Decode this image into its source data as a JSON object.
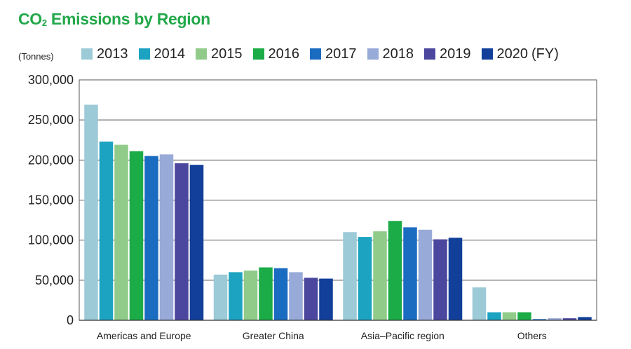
{
  "title_main": "CO",
  "title_sub": "2",
  "title_rest": " Emissions by Region",
  "unit_label": "(Tonnes)",
  "legend_suffix": "(FY)",
  "chart_data": {
    "type": "bar",
    "title": "CO₂ Emissions by Region",
    "ylabel": "(Tonnes)",
    "ylim": [
      0,
      300000
    ],
    "yticks": [
      "0",
      "50,000",
      "100,000",
      "150,000",
      "200,000",
      "250,000",
      "300,000"
    ],
    "ytick_values": [
      0,
      50000,
      100000,
      150000,
      200000,
      250000,
      300000
    ],
    "grid": true,
    "legend_position": "top",
    "categories": [
      "Americas and Europe",
      "Greater China",
      "Asia–Pacific region",
      "Others"
    ],
    "series": [
      {
        "name": "2013",
        "color": "#9ccad6",
        "values": [
          269000,
          57000,
          110000,
          41000
        ]
      },
      {
        "name": "2014",
        "color": "#1ba3c1",
        "values": [
          223000,
          60000,
          104000,
          10000
        ]
      },
      {
        "name": "2015",
        "color": "#90cb8a",
        "values": [
          219000,
          62000,
          111000,
          10000
        ]
      },
      {
        "name": "2016",
        "color": "#1bab47",
        "values": [
          211000,
          66000,
          124000,
          10000
        ]
      },
      {
        "name": "2017",
        "color": "#1a6cc0",
        "values": [
          205000,
          65000,
          116000,
          1500
        ]
      },
      {
        "name": "2018",
        "color": "#98aad8",
        "values": [
          207000,
          60000,
          113000,
          2500
        ]
      },
      {
        "name": "2019",
        "color": "#4c479e",
        "values": [
          196000,
          53000,
          101000,
          2500
        ]
      },
      {
        "name": "2020",
        "color": "#113f9a",
        "values": [
          194000,
          52000,
          103000,
          4000
        ]
      }
    ]
  }
}
